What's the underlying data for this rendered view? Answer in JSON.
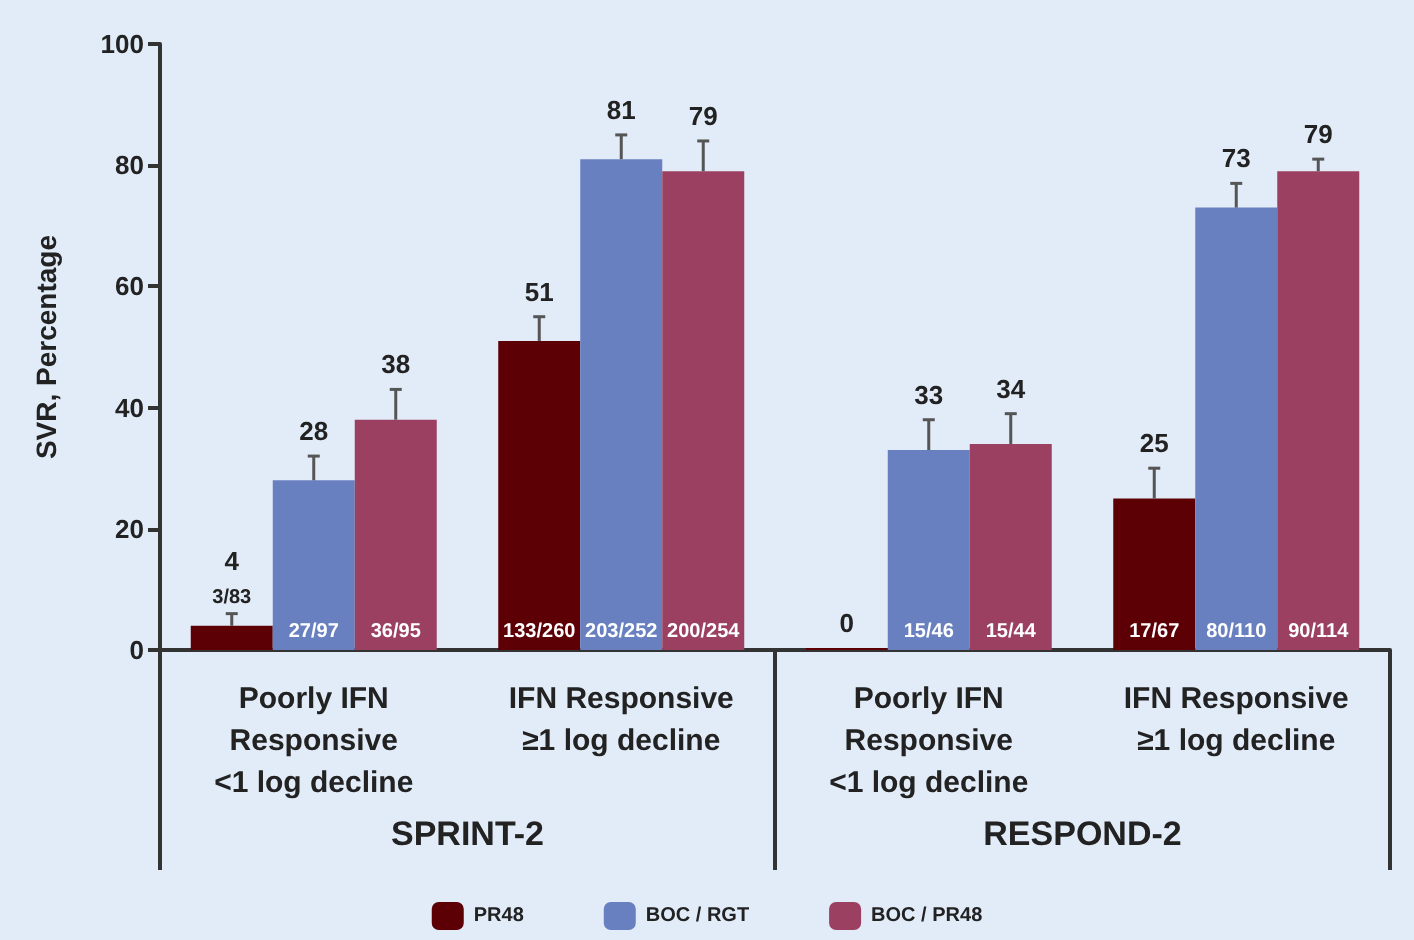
{
  "chart_data": {
    "type": "bar",
    "ylabel": "SVR, Percentage",
    "categories": [
      "Poorly IFN\nResponsive\n<1 log decline",
      "IFN Responsive\n≥1 log decline",
      "Poorly IFN\nResponsive\n<1 log decline",
      "IFN Responsive\n≥1 log decline"
    ],
    "series": [
      {
        "name": "PR48",
        "color": "#5c0006",
        "values": [
          4,
          51,
          0,
          25
        ],
        "errors": [
          [
            4,
            6
          ],
          [
            51,
            55
          ],
          null,
          [
            25,
            30
          ]
        ]
      },
      {
        "name": "BOC / RGT",
        "color": "#6980c0",
        "values": [
          28,
          81,
          33,
          73
        ],
        "errors": [
          [
            28,
            32
          ],
          [
            81,
            85
          ],
          [
            33,
            38
          ],
          [
            73,
            77
          ]
        ]
      },
      {
        "name": "BOC / PR48",
        "color": "#9b4060",
        "values": [
          38,
          79,
          34,
          79
        ],
        "errors": [
          [
            38,
            43
          ],
          [
            79,
            84
          ],
          [
            34,
            39
          ],
          [
            79,
            81
          ]
        ]
      }
    ],
    "annotations": [
      "SPRINT-2",
      "RESPOND-2",
      "3/83",
      "133/260",
      "17/67",
      "27/97",
      "203/252",
      "15/46",
      "80/110",
      "36/95",
      "200/254",
      "15/44",
      "90/114"
    ],
    "ylim": [
      0,
      100
    ],
    "yticks": [
      0,
      20,
      40,
      60,
      80,
      100
    ],
    "grid": false,
    "legend": "bottom",
    "data_labels": true
  }
}
